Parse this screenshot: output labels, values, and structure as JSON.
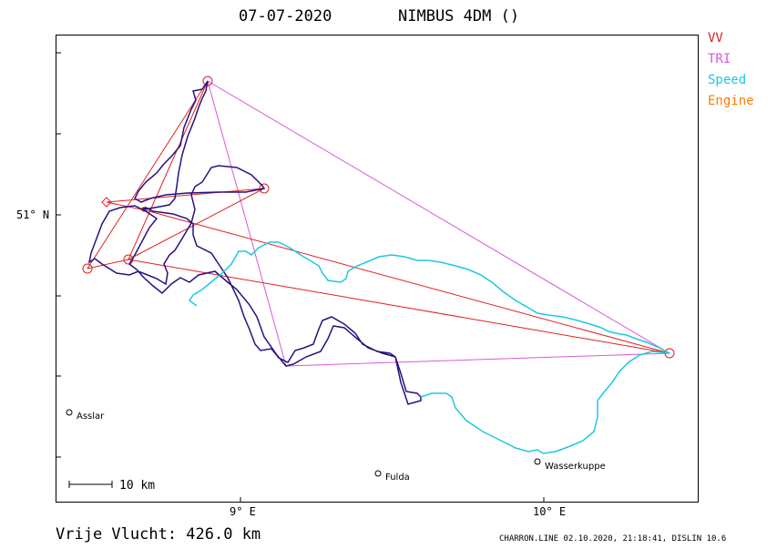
{
  "header": {
    "date": "07-07-2020",
    "glider": "NIMBUS 4DM ()"
  },
  "legend": {
    "vv": {
      "label": "VV",
      "color": "#e02020"
    },
    "tri": {
      "label": "TRI",
      "color": "#d85ad8"
    },
    "speed": {
      "label": "Speed",
      "color": "#1ec8e0"
    },
    "engine": {
      "label": "Engine",
      "color": "#ff7a00"
    }
  },
  "axes": {
    "latitude_label": "51° N",
    "longitude_labels": [
      "9° E",
      "10° E"
    ]
  },
  "places": [
    {
      "name": "Asslar"
    },
    {
      "name": "Fulda"
    },
    {
      "name": "Wasserkuppe"
    }
  ],
  "scale": {
    "label": "10  km"
  },
  "footer": {
    "distance": "Vrije Vlucht:  426.0 km",
    "credit": "CHARRON.LINE 02.10.2020, 21:18:41, DISLIN 10.6"
  },
  "colors": {
    "track": "#2a1080",
    "track_speed": "#1ec8e0",
    "vv_route": "#e02020",
    "tri_route": "#d85ad8"
  }
}
